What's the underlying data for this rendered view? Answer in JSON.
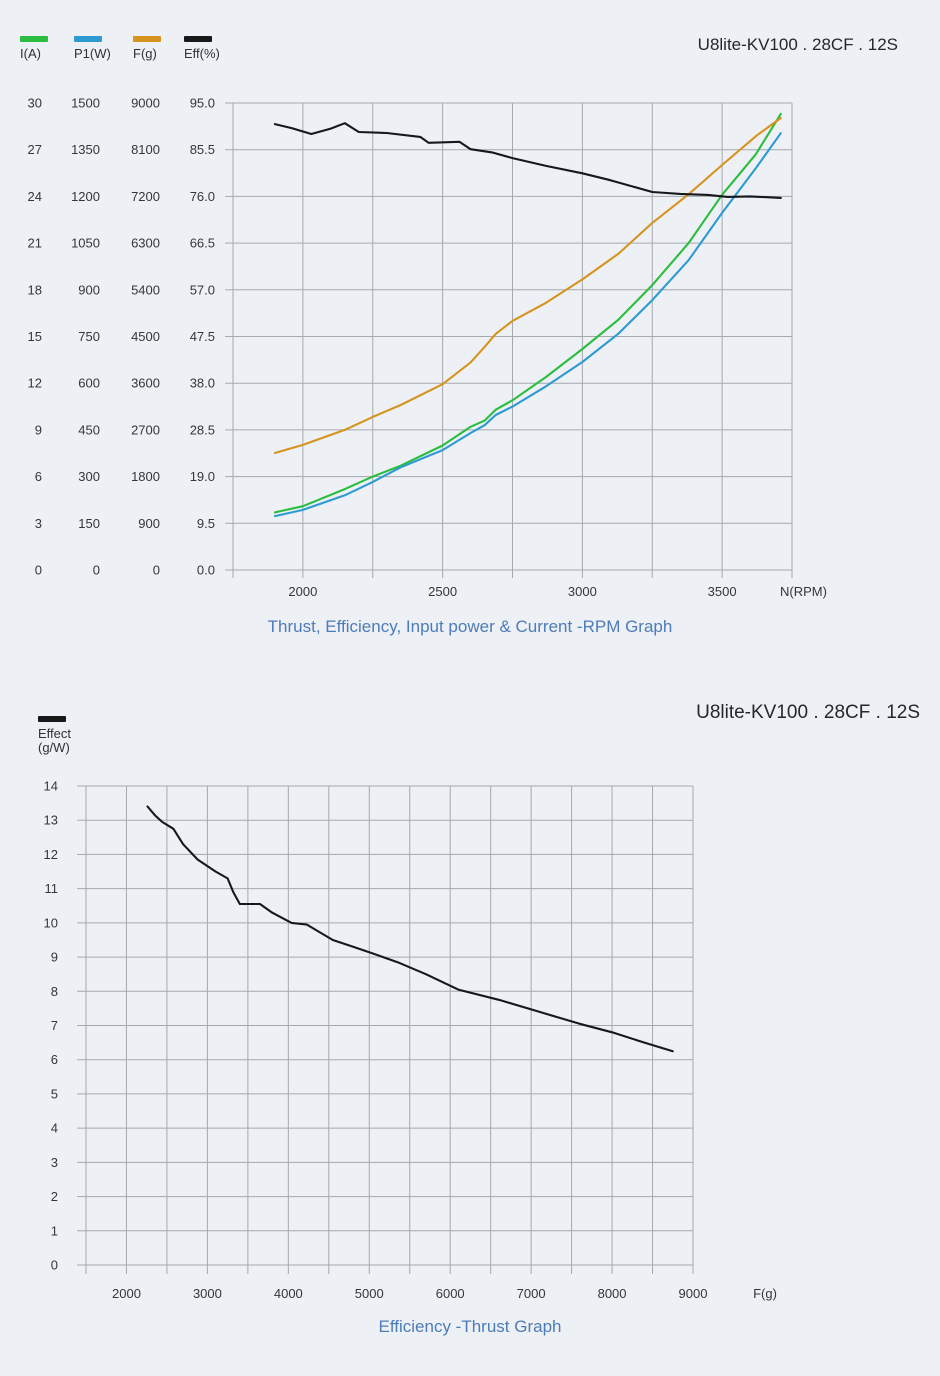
{
  "page": {
    "background": "#edf0f5"
  },
  "chart_data": [
    {
      "type": "line",
      "id": "rpm-graph",
      "title": "U8lite-KV100 . 28CF . 12S",
      "caption": "Thrust, Efficiency, Input power & Current -RPM Graph",
      "xlabel": "N(RPM)",
      "xlim": [
        1750,
        3750
      ],
      "x_grid_step": 250,
      "x_tick_values": [
        2000,
        2500,
        3000,
        3500
      ],
      "grid": true,
      "legend_position": "top-left",
      "y_axes": [
        {
          "name": "I(A)",
          "color": "#2bbd3f",
          "max": 30,
          "tick_labels": [
            "30",
            "27",
            "24",
            "21",
            "18",
            "15",
            "12",
            "9",
            "6",
            "3",
            "0"
          ]
        },
        {
          "name": "P1(W)",
          "color": "#2d9ad2",
          "max": 1500,
          "tick_labels": [
            "1500",
            "1350",
            "1200",
            "1050",
            "900",
            "750",
            "600",
            "450",
            "300",
            "150",
            "0"
          ]
        },
        {
          "name": "F(g)",
          "color": "#d6941e",
          "max": 9000,
          "tick_labels": [
            "9000",
            "8100",
            "7200",
            "6300",
            "5400",
            "4500",
            "3600",
            "2700",
            "1800",
            "900",
            "0"
          ]
        },
        {
          "name": "Eff(%)",
          "color": "#17181a",
          "max": 95,
          "tick_labels": [
            "95.0",
            "85.5",
            "76.0",
            "66.5",
            "57.0",
            "47.5",
            "38.0",
            "28.5",
            "19.0",
            "9.5",
            "0.0"
          ]
        }
      ],
      "series": [
        {
          "name": "I(A)",
          "color": "#2bbd3f",
          "max": 30,
          "points": [
            [
              1900,
              3.7
            ],
            [
              2000,
              4.1
            ],
            [
              2150,
              5.2
            ],
            [
              2250,
              6.0
            ],
            [
              2350,
              6.7
            ],
            [
              2500,
              8.0
            ],
            [
              2600,
              9.2
            ],
            [
              2650,
              9.6
            ],
            [
              2690,
              10.3
            ],
            [
              2750,
              10.9
            ],
            [
              2870,
              12.4
            ],
            [
              3000,
              14.2
            ],
            [
              3130,
              16.1
            ],
            [
              3250,
              18.3
            ],
            [
              3380,
              21.0
            ],
            [
              3500,
              24.1
            ],
            [
              3620,
              26.7
            ],
            [
              3710,
              29.3
            ]
          ]
        },
        {
          "name": "P1(W)",
          "color": "#2d9ad2",
          "max": 1500,
          "points": [
            [
              1900,
              173
            ],
            [
              2000,
              193
            ],
            [
              2150,
              240
            ],
            [
              2250,
              283
            ],
            [
              2350,
              330
            ],
            [
              2500,
              385
            ],
            [
              2600,
              440
            ],
            [
              2650,
              465
            ],
            [
              2690,
              498
            ],
            [
              2750,
              525
            ],
            [
              2870,
              590
            ],
            [
              3000,
              668
            ],
            [
              3130,
              760
            ],
            [
              3250,
              867
            ],
            [
              3380,
              995
            ],
            [
              3500,
              1147
            ],
            [
              3620,
              1290
            ],
            [
              3710,
              1403
            ]
          ]
        },
        {
          "name": "F(g)",
          "color": "#d6941e",
          "max": 9000,
          "points": [
            [
              1900,
              2255
            ],
            [
              2000,
              2410
            ],
            [
              2150,
              2700
            ],
            [
              2250,
              2950
            ],
            [
              2350,
              3180
            ],
            [
              2500,
              3580
            ],
            [
              2600,
              4000
            ],
            [
              2650,
              4300
            ],
            [
              2690,
              4550
            ],
            [
              2750,
              4800
            ],
            [
              2870,
              5150
            ],
            [
              3000,
              5600
            ],
            [
              3130,
              6100
            ],
            [
              3250,
              6690
            ],
            [
              3380,
              7240
            ],
            [
              3500,
              7805
            ],
            [
              3625,
              8380
            ],
            [
              3710,
              8710
            ]
          ]
        },
        {
          "name": "Eff(%)",
          "color": "#17181a",
          "max": 95,
          "points": [
            [
              1900,
              90.7
            ],
            [
              1960,
              89.9
            ],
            [
              2030,
              88.7
            ],
            [
              2100,
              89.8
            ],
            [
              2150,
              90.9
            ],
            [
              2200,
              89.1
            ],
            [
              2300,
              88.9
            ],
            [
              2420,
              88.1
            ],
            [
              2450,
              86.9
            ],
            [
              2560,
              87.1
            ],
            [
              2600,
              85.6
            ],
            [
              2680,
              84.9
            ],
            [
              2750,
              83.8
            ],
            [
              2870,
              82.2
            ],
            [
              3000,
              80.7
            ],
            [
              3100,
              79.3
            ],
            [
              3250,
              76.9
            ],
            [
              3350,
              76.5
            ],
            [
              3450,
              76.3
            ],
            [
              3520,
              75.9
            ],
            [
              3600,
              76.0
            ],
            [
              3710,
              75.7
            ]
          ]
        }
      ]
    },
    {
      "type": "line",
      "id": "efficiency-thrust-graph",
      "title": "U8lite-KV100 . 28CF . 12S",
      "caption": "Efficiency -Thrust Graph",
      "xlabel": "F(g)",
      "legend": {
        "line1": "Effect",
        "line2": "(g/W)",
        "color": "#17181a"
      },
      "xlim": [
        1500,
        9000
      ],
      "x_grid_step": 500,
      "x_tick_values": [
        2000,
        3000,
        4000,
        5000,
        6000,
        7000,
        8000,
        9000
      ],
      "ylim": [
        0,
        14
      ],
      "y_tick_labels": [
        "14",
        "13",
        "12",
        "11",
        "10",
        "9",
        "8",
        "7",
        "6",
        "5",
        "4",
        "3",
        "2",
        "1",
        "0"
      ],
      "grid": true,
      "legend_position": "top-left",
      "series": [
        {
          "name": "Effect (g/W)",
          "color": "#17181a",
          "max": 14,
          "points": [
            [
              2260,
              13.4
            ],
            [
              2350,
              13.15
            ],
            [
              2440,
              12.95
            ],
            [
              2580,
              12.75
            ],
            [
              2700,
              12.3
            ],
            [
              2880,
              11.85
            ],
            [
              3100,
              11.5
            ],
            [
              3250,
              11.3
            ],
            [
              3320,
              10.9
            ],
            [
              3400,
              10.55
            ],
            [
              3650,
              10.55
            ],
            [
              3800,
              10.3
            ],
            [
              4040,
              10.0
            ],
            [
              4230,
              9.95
            ],
            [
              4550,
              9.5
            ],
            [
              4800,
              9.3
            ],
            [
              5050,
              9.1
            ],
            [
              5350,
              8.85
            ],
            [
              5700,
              8.5
            ],
            [
              6100,
              8.05
            ],
            [
              6600,
              7.75
            ],
            [
              7100,
              7.4
            ],
            [
              7600,
              7.05
            ],
            [
              8000,
              6.8
            ],
            [
              8400,
              6.5
            ],
            [
              8750,
              6.25
            ]
          ]
        }
      ]
    }
  ]
}
